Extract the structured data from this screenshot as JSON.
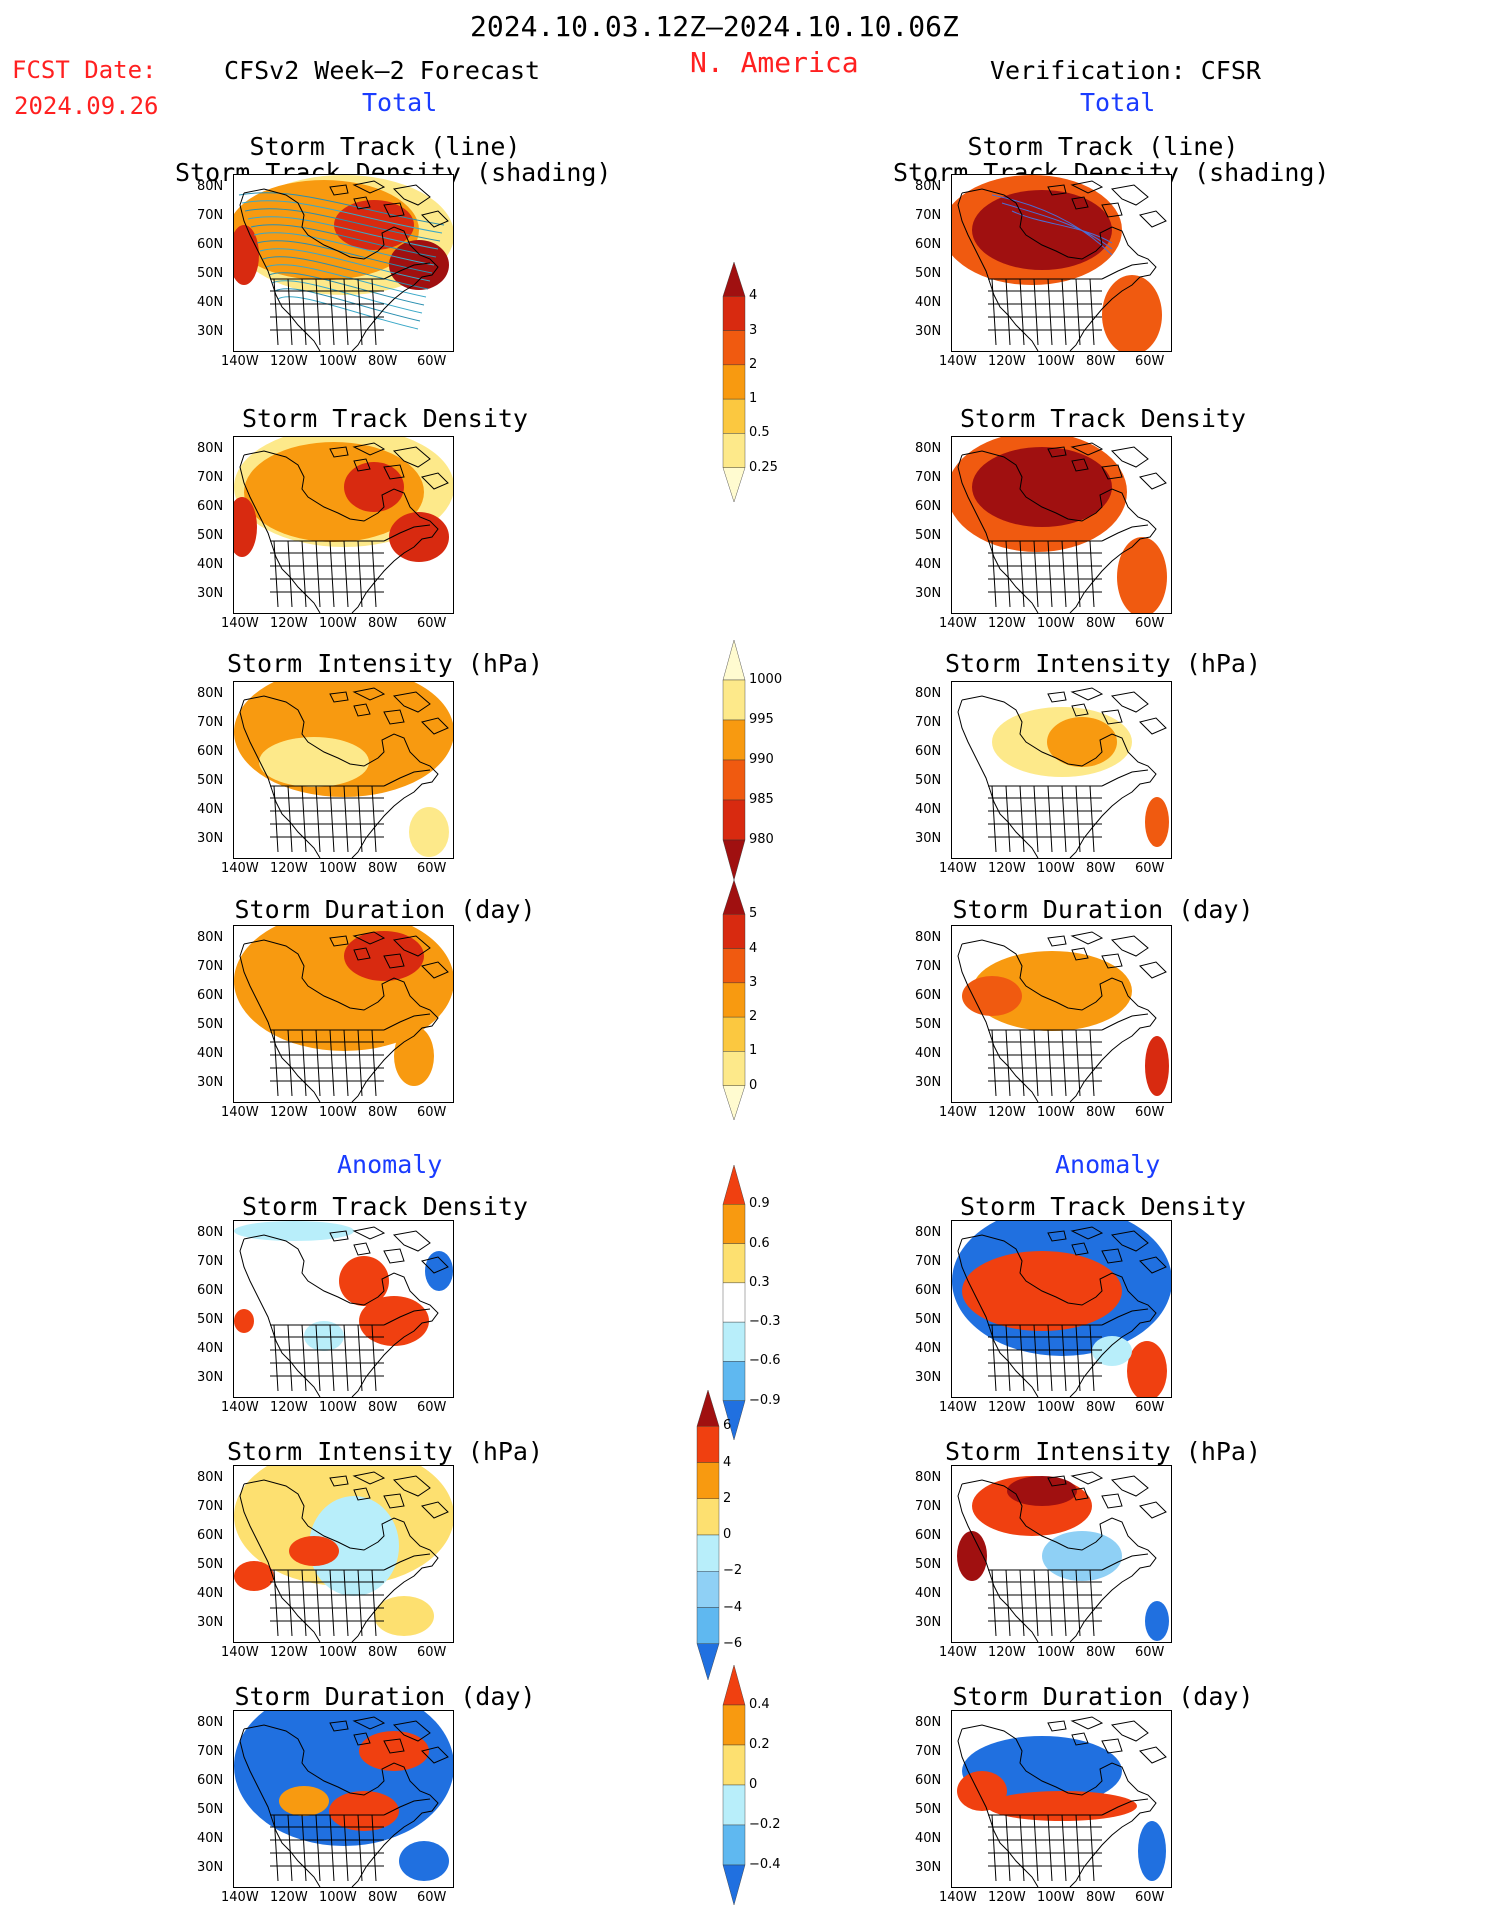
{
  "header": {
    "date_range": "2024.10.03.12Z–2024.10.10.06Z",
    "region": "N. America",
    "fcst_label": "FCST Date:",
    "fcst_date": "2024.09.26",
    "left_title": "CFSv2 Week–2 Forecast",
    "right_title": "Verification: CFSR"
  },
  "sections": {
    "total": "Total",
    "anomaly": "Anomaly"
  },
  "panel_titles": {
    "storm_track_line": "Storm Track (line)",
    "storm_track_density_shading": "Storm Track Density (shading)",
    "storm_track_density": "Storm Track Density",
    "storm_intensity": "Storm Intensity (hPa)",
    "storm_duration": "Storm Duration (day)"
  },
  "axes": {
    "lat_labels": [
      "80N",
      "70N",
      "60N",
      "50N",
      "40N",
      "30N"
    ],
    "lon_labels": [
      "140W",
      "120W",
      "100W",
      "80W",
      "60W"
    ]
  },
  "colorbars": [
    {
      "name": "track-density-total",
      "labels": [
        "4",
        "3",
        "2",
        "1",
        "0.5",
        "0.25"
      ],
      "colors": [
        "#a01010",
        "#d82a10",
        "#f05a10",
        "#f89a10",
        "#fbc840",
        "#fde98a",
        "#fffbd0"
      ]
    },
    {
      "name": "intensity-total",
      "labels": [
        "1000",
        "995",
        "990",
        "985",
        "980"
      ],
      "colors": [
        "#fffbd0",
        "#fde98a",
        "#f89a10",
        "#f05a10",
        "#d82a10",
        "#a01010"
      ]
    },
    {
      "name": "duration-total",
      "labels": [
        "5",
        "4",
        "3",
        "2",
        "1",
        "0"
      ],
      "colors": [
        "#a01010",
        "#d82a10",
        "#f05a10",
        "#f89a10",
        "#fbc840",
        "#fde98a",
        "#fffbd0"
      ]
    },
    {
      "name": "track-density-anom",
      "labels": [
        "0.9",
        "0.6",
        "0.3",
        "−0.3",
        "−0.6",
        "−0.9"
      ],
      "colors": [
        "#f04010",
        "#f89a10",
        "#fde070",
        "#ffffff",
        "#b8eefa",
        "#5fb8f0",
        "#2070e0"
      ]
    },
    {
      "name": "intensity-anom",
      "labels": [
        "6",
        "4",
        "2",
        "0",
        "−2",
        "−4",
        "−6"
      ],
      "colors": [
        "#a01010",
        "#f04010",
        "#f89a10",
        "#fde070",
        "#b8eefa",
        "#8fd0f5",
        "#5fb8f0",
        "#2070e0"
      ]
    },
    {
      "name": "duration-anom",
      "labels": [
        "0.4",
        "0.2",
        "0",
        "−0.2",
        "−0.4"
      ],
      "colors": [
        "#f04010",
        "#f89a10",
        "#fde070",
        "#b8eefa",
        "#5fb8f0",
        "#2070e0"
      ]
    }
  ]
}
